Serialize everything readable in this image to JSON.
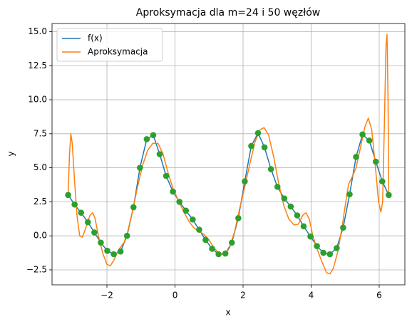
{
  "chart_data": {
    "type": "line",
    "title": "Aproksymacja dla m=24 i 50 węzłów",
    "xlabel": "x",
    "ylabel": "y",
    "xlim": [
      -3.613,
      6.754
    ],
    "ylim": [
      -3.6,
      15.6
    ],
    "xticks": [
      {
        "value": -2,
        "label": "−2"
      },
      0,
      2,
      4,
      6
    ],
    "yticks": [
      {
        "value": -2.5,
        "label": "−2.5"
      },
      {
        "value": 0,
        "label": "0.0"
      },
      2.5,
      {
        "value": 5,
        "label": "5.0"
      },
      7.5,
      {
        "value": 10,
        "label": "10.0"
      },
      12.5,
      {
        "value": 15,
        "label": "15.0"
      }
    ],
    "grid": true,
    "legend": "upper left",
    "series": [
      {
        "name": "f(x)",
        "color": "#1f77b4",
        "x": [
          -3.14,
          -2.95,
          -2.76,
          -2.56,
          -2.37,
          -2.18,
          -1.99,
          -1.8,
          -1.6,
          -1.41,
          -1.22,
          -1.03,
          -0.83,
          -0.64,
          -0.45,
          -0.26,
          -0.06,
          0.13,
          0.32,
          0.52,
          0.71,
          0.9,
          1.09,
          1.28,
          1.48,
          1.67,
          1.86,
          2.05,
          2.24,
          2.44,
          2.63,
          2.82,
          3.01,
          3.21,
          3.4,
          3.59,
          3.78,
          3.98,
          4.17,
          4.36,
          4.55,
          4.75,
          4.94,
          5.13,
          5.32,
          5.51,
          5.71,
          5.9,
          6.09,
          6.28
        ],
        "values": [
          3.0,
          2.3,
          1.7,
          1.0,
          0.25,
          -0.5,
          -1.1,
          -1.35,
          -1.15,
          0.0,
          2.1,
          5.0,
          7.1,
          7.4,
          6.0,
          4.4,
          3.25,
          2.5,
          1.85,
          1.2,
          0.45,
          -0.3,
          -0.95,
          -1.35,
          -1.3,
          -0.5,
          1.3,
          4.0,
          6.6,
          7.55,
          6.5,
          4.9,
          3.6,
          2.75,
          2.15,
          1.5,
          0.7,
          -0.05,
          -0.75,
          -1.25,
          -1.35,
          -0.9,
          0.6,
          3.05,
          5.8,
          7.45,
          7.0,
          5.45,
          4.0,
          3.0
        ]
      },
      {
        "name": "Aproksymacja",
        "color": "#ff7f0e",
        "x": [
          -3.14,
          -3.1,
          -3.06,
          -3.02,
          -2.95,
          -2.88,
          -2.8,
          -2.72,
          -2.62,
          -2.5,
          -2.42,
          -2.35,
          -2.25,
          -2.12,
          -2.0,
          -1.9,
          -1.8,
          -1.65,
          -1.5,
          -1.4,
          -1.25,
          -1.1,
          -0.95,
          -0.8,
          -0.65,
          -0.5,
          -0.35,
          -0.2,
          -0.05,
          0.1,
          0.25,
          0.4,
          0.55,
          0.7,
          0.85,
          1.0,
          1.15,
          1.3,
          1.45,
          1.6,
          1.75,
          1.9,
          2.05,
          2.2,
          2.35,
          2.5,
          2.62,
          2.75,
          2.9,
          3.05,
          3.2,
          3.35,
          3.5,
          3.62,
          3.75,
          3.85,
          3.95,
          4.05,
          4.15,
          4.3,
          4.45,
          4.55,
          4.65,
          4.78,
          4.9,
          5.0,
          5.1,
          5.2,
          5.32,
          5.45,
          5.58,
          5.68,
          5.78,
          5.88,
          5.98,
          6.05,
          6.1,
          6.15,
          6.2,
          6.23,
          6.26,
          6.28
        ],
        "values": [
          3.0,
          6.0,
          7.5,
          6.8,
          4.0,
          1.5,
          0.0,
          -0.1,
          0.6,
          1.5,
          1.7,
          1.3,
          0.0,
          -1.3,
          -2.1,
          -2.2,
          -1.8,
          -1.0,
          -0.5,
          0.2,
          1.8,
          3.6,
          5.2,
          6.3,
          6.8,
          6.8,
          6.0,
          4.6,
          3.4,
          2.6,
          1.8,
          1.1,
          0.6,
          0.35,
          0.1,
          -0.3,
          -0.9,
          -1.3,
          -1.4,
          -0.9,
          0.3,
          2.0,
          3.6,
          5.3,
          6.9,
          7.8,
          7.95,
          7.4,
          5.8,
          3.8,
          2.2,
          1.2,
          0.8,
          0.85,
          1.5,
          1.7,
          1.2,
          0.0,
          -0.8,
          -1.8,
          -2.7,
          -2.8,
          -2.4,
          -1.2,
          0.5,
          2.2,
          3.8,
          4.3,
          5.0,
          6.5,
          8.0,
          8.65,
          7.8,
          5.3,
          2.5,
          1.75,
          2.5,
          8.0,
          14.0,
          14.8,
          10.0,
          3.0
        ]
      },
      {
        "type": "scatter",
        "color": "#2ca02c",
        "x": [
          -3.14,
          -2.95,
          -2.76,
          -2.56,
          -2.37,
          -2.18,
          -1.99,
          -1.8,
          -1.6,
          -1.41,
          -1.22,
          -1.03,
          -0.83,
          -0.64,
          -0.45,
          -0.26,
          -0.06,
          0.13,
          0.32,
          0.52,
          0.71,
          0.9,
          1.09,
          1.28,
          1.48,
          1.67,
          1.86,
          2.05,
          2.24,
          2.44,
          2.63,
          2.82,
          3.01,
          3.21,
          3.4,
          3.59,
          3.78,
          3.98,
          4.17,
          4.36,
          4.55,
          4.75,
          4.94,
          5.13,
          5.32,
          5.51,
          5.71,
          5.9,
          6.09,
          6.28
        ],
        "values": [
          3.0,
          2.3,
          1.7,
          1.0,
          0.25,
          -0.5,
          -1.1,
          -1.35,
          -1.15,
          0.0,
          2.1,
          5.0,
          7.1,
          7.4,
          6.0,
          4.4,
          3.25,
          2.5,
          1.85,
          1.2,
          0.45,
          -0.3,
          -0.95,
          -1.35,
          -1.3,
          -0.5,
          1.3,
          4.0,
          6.6,
          7.55,
          6.5,
          4.9,
          3.6,
          2.75,
          2.15,
          1.5,
          0.7,
          -0.05,
          -0.75,
          -1.25,
          -1.35,
          -0.9,
          0.6,
          3.05,
          5.8,
          7.45,
          7.0,
          5.45,
          4.0,
          3.0
        ]
      }
    ]
  }
}
